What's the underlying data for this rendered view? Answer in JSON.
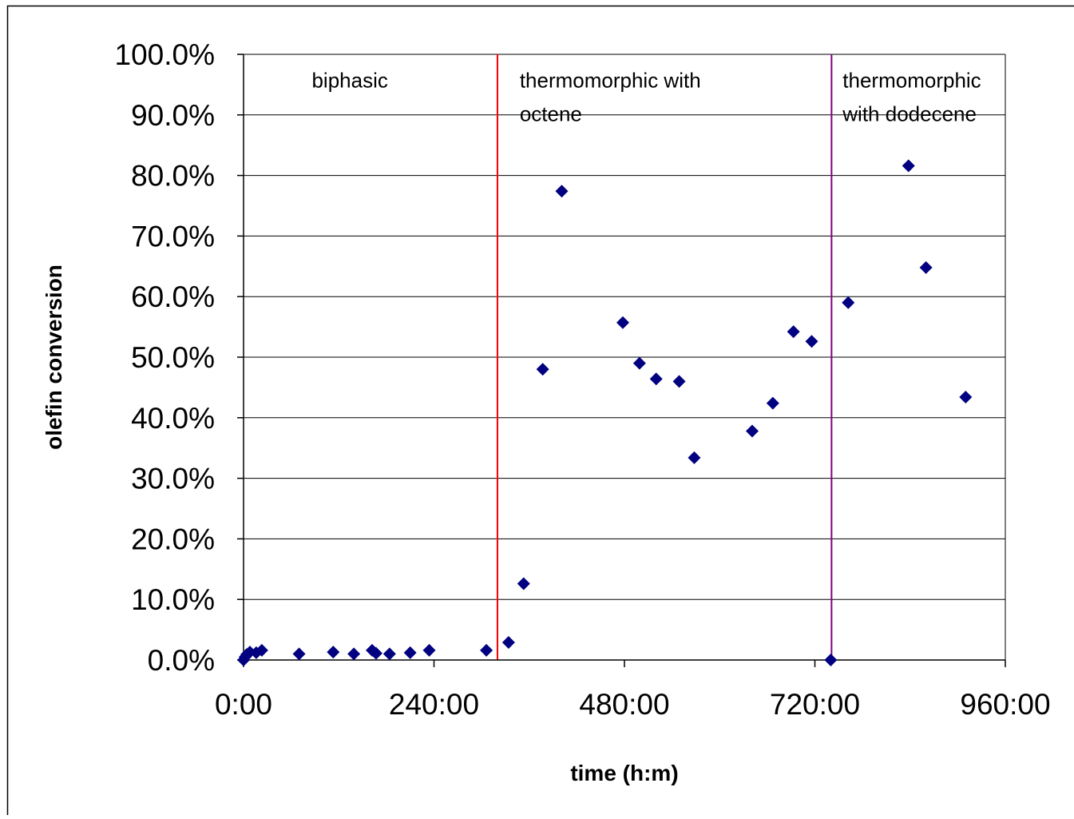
{
  "chart_data": {
    "type": "scatter",
    "title": "",
    "xlabel": "time (h:m)",
    "ylabel": "olefin conversion",
    "x_unit": "hours",
    "xlim": [
      0,
      960
    ],
    "ylim": [
      0,
      1
    ],
    "x_ticks": [
      0,
      240,
      480,
      720,
      960
    ],
    "x_tick_labels": [
      "0:00",
      "240:00",
      "480:00",
      "720:00",
      "960:00"
    ],
    "y_ticks": [
      0,
      0.1,
      0.2,
      0.3,
      0.4,
      0.5,
      0.6,
      0.7,
      0.8,
      0.9,
      1.0
    ],
    "y_tick_labels": [
      "0.0%",
      "10.0%",
      "20.0%",
      "30.0%",
      "40.0%",
      "50.0%",
      "60.0%",
      "70.0%",
      "80.0%",
      "90.0%",
      "100.0%"
    ],
    "grid": {
      "horizontal": true,
      "vertical": false
    },
    "legend": "none",
    "marker": {
      "shape": "diamond",
      "color": "#000080"
    },
    "points": [
      {
        "x": 0,
        "y": 0.0
      },
      {
        "x": 2,
        "y": 0.005
      },
      {
        "x": 4,
        "y": 0.009
      },
      {
        "x": 8,
        "y": 0.013
      },
      {
        "x": 16,
        "y": 0.012
      },
      {
        "x": 23,
        "y": 0.016
      },
      {
        "x": 70,
        "y": 0.01
      },
      {
        "x": 113,
        "y": 0.013
      },
      {
        "x": 139,
        "y": 0.01
      },
      {
        "x": 162,
        "y": 0.016
      },
      {
        "x": 167,
        "y": 0.011
      },
      {
        "x": 184,
        "y": 0.01
      },
      {
        "x": 210,
        "y": 0.012
      },
      {
        "x": 234,
        "y": 0.016
      },
      {
        "x": 306,
        "y": 0.016
      },
      {
        "x": 334,
        "y": 0.029
      },
      {
        "x": 353,
        "y": 0.126
      },
      {
        "x": 377,
        "y": 0.48
      },
      {
        "x": 401,
        "y": 0.774
      },
      {
        "x": 478,
        "y": 0.557
      },
      {
        "x": 499,
        "y": 0.49
      },
      {
        "x": 520,
        "y": 0.464
      },
      {
        "x": 549,
        "y": 0.46
      },
      {
        "x": 568,
        "y": 0.334
      },
      {
        "x": 641,
        "y": 0.378
      },
      {
        "x": 667,
        "y": 0.424
      },
      {
        "x": 693,
        "y": 0.542
      },
      {
        "x": 716,
        "y": 0.526
      },
      {
        "x": 740,
        "y": 0.0
      },
      {
        "x": 762,
        "y": 0.59
      },
      {
        "x": 838,
        "y": 0.816
      },
      {
        "x": 860,
        "y": 0.648
      },
      {
        "x": 910,
        "y": 0.434
      }
    ],
    "reference_lines": [
      {
        "x": 320,
        "color": "#ff0000"
      },
      {
        "x": 741,
        "color": "#800080"
      }
    ],
    "annotations": [
      {
        "lines": [
          "biphasic"
        ],
        "x": 86,
        "y": 0.945
      },
      {
        "lines": [
          "thermomorphic with",
          "octene"
        ],
        "x": 348,
        "y": 0.945
      },
      {
        "lines": [
          "thermomorphic",
          "with dodecene"
        ],
        "x": 755,
        "y": 0.945
      }
    ]
  }
}
